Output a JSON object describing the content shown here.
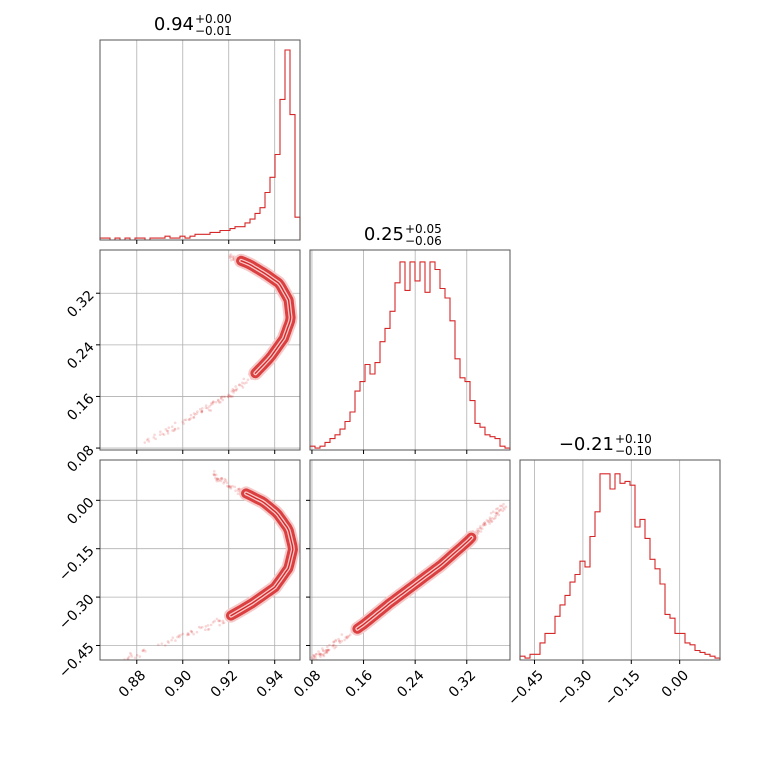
{
  "colors": {
    "line": "#d62728",
    "fill": "#f6c9c9",
    "grid": "#b0b0b0",
    "axis": "#555555"
  },
  "chart_data": {
    "type": "corner",
    "params": [
      {
        "range": [
          0.864,
          0.951
        ],
        "ticks": [
          0.88,
          0.9,
          0.92,
          0.94
        ],
        "tick_labels": [
          "0.88",
          "0.90",
          "0.92",
          "0.94"
        ],
        "title": {
          "main": "0.94",
          "sup": "+0.00",
          "sub": "−0.01"
        }
      },
      {
        "range": [
          0.077,
          0.387
        ],
        "ticks": [
          0.08,
          0.16,
          0.24,
          0.32
        ],
        "tick_labels": [
          "0.08",
          "0.16",
          "0.24",
          "0.32"
        ],
        "title": {
          "main": "0.25",
          "sup": "+0.05",
          "sub": "−0.06"
        }
      },
      {
        "range": [
          -0.495,
          0.125
        ],
        "ticks": [
          -0.45,
          -0.3,
          -0.15,
          0.0
        ],
        "tick_labels": [
          "−0.45",
          "−0.30",
          "−0.15",
          "0.00"
        ],
        "title": {
          "main": "−0.21",
          "sup": "+0.10",
          "sub": "−0.10"
        }
      }
    ],
    "histograms": [
      {
        "values": [
          0.01,
          0.01,
          0.0,
          0.01,
          0.0,
          0.01,
          0.0,
          0.01,
          0.01,
          0.0,
          0.01,
          0.01,
          0.01,
          0.02,
          0.01,
          0.01,
          0.02,
          0.01,
          0.02,
          0.03,
          0.03,
          0.03,
          0.04,
          0.04,
          0.05,
          0.05,
          0.06,
          0.07,
          0.07,
          0.09,
          0.11,
          0.14,
          0.17,
          0.25,
          0.33,
          0.45,
          0.74,
          1.0,
          0.66,
          0.12
        ]
      },
      {
        "values": [
          0.02,
          0.01,
          0.02,
          0.04,
          0.06,
          0.08,
          0.11,
          0.15,
          0.2,
          0.31,
          0.36,
          0.45,
          0.4,
          0.46,
          0.57,
          0.64,
          0.73,
          0.88,
          0.99,
          0.84,
          0.99,
          0.89,
          0.99,
          0.83,
          0.99,
          0.95,
          0.85,
          0.8,
          0.68,
          0.48,
          0.38,
          0.36,
          0.26,
          0.14,
          0.12,
          0.08,
          0.07,
          0.06,
          0.02,
          0.01
        ]
      },
      {
        "values": [
          0.02,
          0.01,
          0.03,
          0.03,
          0.09,
          0.14,
          0.14,
          0.23,
          0.29,
          0.34,
          0.41,
          0.45,
          0.52,
          0.49,
          0.65,
          0.78,
          0.98,
          0.98,
          0.9,
          0.98,
          0.93,
          0.94,
          0.92,
          0.7,
          0.74,
          0.64,
          0.53,
          0.48,
          0.4,
          0.24,
          0.22,
          0.14,
          0.14,
          0.09,
          0.08,
          0.05,
          0.04,
          0.03,
          0.02,
          0.01
        ]
      }
    ],
    "ridges": {
      "p1_vs_p0": [
        [
          0.882,
          0.085
        ],
        [
          0.898,
          0.115
        ],
        [
          0.91,
          0.14
        ],
        [
          0.92,
          0.162
        ],
        [
          0.93,
          0.19
        ],
        [
          0.938,
          0.22
        ],
        [
          0.944,
          0.25
        ],
        [
          0.947,
          0.28
        ],
        [
          0.946,
          0.31
        ],
        [
          0.942,
          0.335
        ],
        [
          0.936,
          0.35
        ],
        [
          0.929,
          0.365
        ],
        [
          0.92,
          0.378
        ]
      ],
      "p2_vs_p0": [
        [
          0.874,
          -0.495
        ],
        [
          0.89,
          -0.45
        ],
        [
          0.905,
          -0.41
        ],
        [
          0.918,
          -0.37
        ],
        [
          0.93,
          -0.32
        ],
        [
          0.94,
          -0.27
        ],
        [
          0.946,
          -0.21
        ],
        [
          0.948,
          -0.15
        ],
        [
          0.946,
          -0.09
        ],
        [
          0.941,
          -0.04
        ],
        [
          0.935,
          -0.005
        ],
        [
          0.928,
          0.02
        ],
        [
          0.919,
          0.05
        ],
        [
          0.912,
          0.09
        ]
      ],
      "p2_vs_p1": [
        [
          0.08,
          -0.495
        ],
        [
          0.12,
          -0.44
        ],
        [
          0.16,
          -0.385
        ],
        [
          0.2,
          -0.32
        ],
        [
          0.24,
          -0.26
        ],
        [
          0.28,
          -0.2
        ],
        [
          0.32,
          -0.13
        ],
        [
          0.35,
          -0.07
        ],
        [
          0.38,
          -0.015
        ]
      ]
    },
    "dense_segments": {
      "p1_vs_p0": [
        0.35,
        0.95
      ],
      "p2_vs_p0": [
        0.25,
        0.85
      ],
      "p2_vs_p1": [
        0.22,
        0.78
      ]
    }
  }
}
